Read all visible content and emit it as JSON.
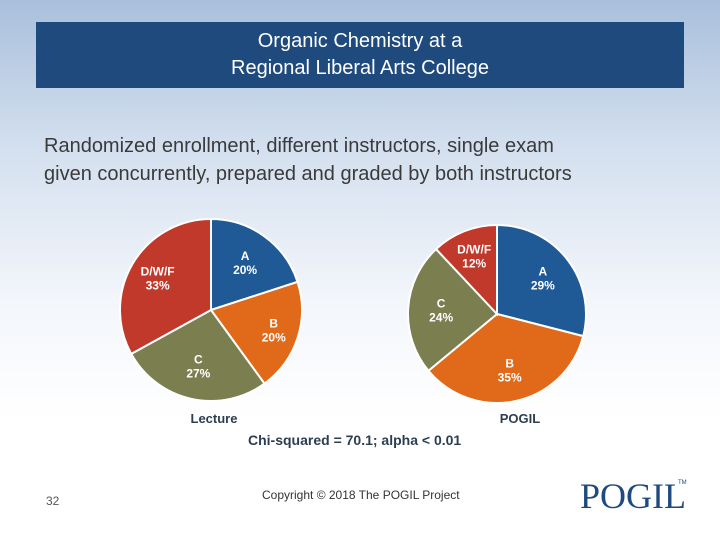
{
  "slide": {
    "title_line1": "Organic Chemistry at a",
    "title_line2": "Regional Liberal Arts College",
    "subtitle_line1": "Randomized enrollment, different instructors, single exam",
    "subtitle_line2": "given concurrently, prepared and graded by both instructors",
    "page_number": "32",
    "copyright": "Copyright © 2018 The POGIL Project",
    "logo_text": "POGIL",
    "logo_tm": "TM"
  },
  "stats_note": "Chi-squared = 70.1; alpha < 0.01",
  "colors": {
    "A": "#1f5a96",
    "B": "#e06a1a",
    "C": "#7b7f50",
    "DWF": "#c0392b"
  },
  "chart_data": [
    {
      "type": "pie",
      "title": "Lecture",
      "slices": [
        {
          "key": "A",
          "label": "A",
          "value": 20,
          "value_label": "20%"
        },
        {
          "key": "B",
          "label": "B",
          "value": 20,
          "value_label": "20%"
        },
        {
          "key": "C",
          "label": "C",
          "value": 27,
          "value_label": "27%"
        },
        {
          "key": "DWF",
          "label": "D/W/F",
          "value": 33,
          "value_label": "33%"
        }
      ]
    },
    {
      "type": "pie",
      "title": "POGIL",
      "slices": [
        {
          "key": "A",
          "label": "A",
          "value": 29,
          "value_label": "29%"
        },
        {
          "key": "B",
          "label": "B",
          "value": 35,
          "value_label": "35%"
        },
        {
          "key": "C",
          "label": "C",
          "value": 24,
          "value_label": "24%"
        },
        {
          "key": "DWF",
          "label": "D/W/F",
          "value": 12,
          "value_label": "12%"
        }
      ]
    }
  ]
}
